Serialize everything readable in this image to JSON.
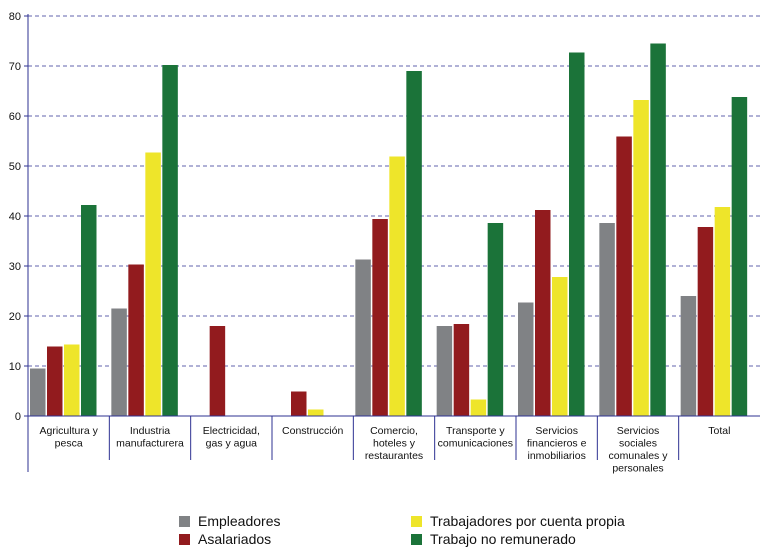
{
  "chart_data": {
    "type": "bar",
    "categories": [
      [
        "Agricultura y",
        "pesca"
      ],
      [
        "Industria",
        "manufacturera"
      ],
      [
        "Electricidad,",
        "gas y agua"
      ],
      [
        "Construcción"
      ],
      [
        "Comercio,",
        "hoteles y",
        "restaurantes"
      ],
      [
        "Transporte y",
        "comunicaciones"
      ],
      [
        "Servicios",
        "financieros e",
        "inmobiliarios"
      ],
      [
        "Servicios",
        "sociales",
        "comunales y",
        "personales"
      ],
      [
        "Total"
      ]
    ],
    "series": [
      {
        "name": "Empleadores",
        "color": "#808285",
        "values": [
          9.5,
          21.5,
          null,
          null,
          31.3,
          18,
          22.7,
          38.6,
          24
        ]
      },
      {
        "name": "Asalariados",
        "color": "#921b1e",
        "values": [
          13.9,
          30.3,
          18,
          4.9,
          39.4,
          18.4,
          41.2,
          55.9,
          37.8
        ]
      },
      {
        "name": "Trabajadores por cuenta propia",
        "color": "#eee52a",
        "values": [
          14.3,
          52.7,
          null,
          1.3,
          51.9,
          3.3,
          27.8,
          63.2,
          41.8
        ]
      },
      {
        "name": "Trabajo no remunerado",
        "color": "#1b7339",
        "values": [
          42.2,
          70.2,
          null,
          null,
          69,
          38.6,
          72.7,
          74.5,
          63.8
        ]
      }
    ],
    "yticks": [
      0,
      10,
      20,
      30,
      40,
      50,
      60,
      70,
      80
    ],
    "ylim": [
      0,
      80
    ],
    "grid": true,
    "grid_color": "#2e3192",
    "axis_color": "#2e3192",
    "legend_position": "bottom"
  }
}
